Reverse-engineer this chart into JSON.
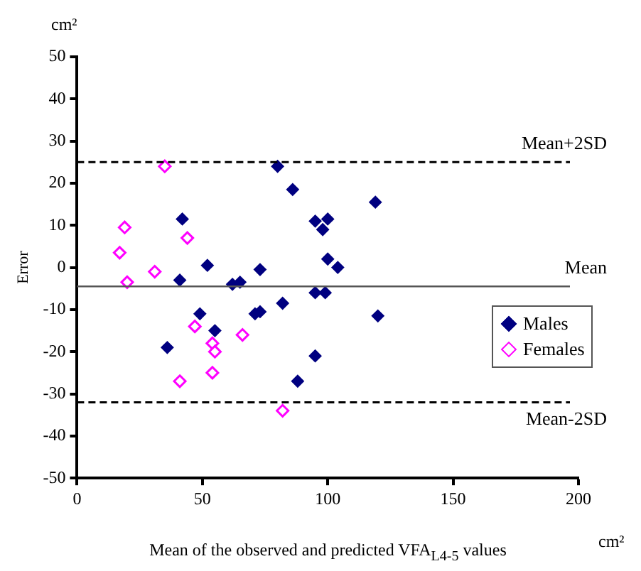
{
  "chart_data": {
    "type": "scatter",
    "xlabel": "Mean of the observed and predicted VFA$_{L4-5}$ values",
    "ylabel": "Error",
    "xlim": [
      0,
      200
    ],
    "xticks": [
      0,
      50,
      100,
      150,
      200
    ],
    "ylim": [
      -50,
      50
    ],
    "yticks": [
      -50,
      -40,
      -30,
      -20,
      -10,
      0,
      10,
      20,
      30,
      40,
      50
    ],
    "grid": false,
    "legend": "right",
    "marker": "diamond",
    "annotations": [
      "cm²",
      "cm²"
    ],
    "ref_lines": [
      {
        "axis": "y",
        "value": 25,
        "label": "Mean+2SD",
        "line_style": "dashed"
      },
      {
        "axis": "y",
        "value": -4.5,
        "label": "Mean",
        "line_style": "solid"
      },
      {
        "axis": "y",
        "value": -32,
        "label": "Mean-2SD",
        "line_style": "dashed"
      }
    ],
    "series": [
      {
        "name": "Males",
        "color": "#000080",
        "x": [
          36,
          42,
          41,
          49,
          52,
          55,
          62,
          65,
          71,
          73,
          73,
          82,
          80,
          86,
          88,
          95,
          98,
          100,
          100,
          104,
          95,
          99,
          95,
          119,
          120
        ],
        "values": [
          -19,
          11.5,
          -3,
          -11,
          0.5,
          -15,
          -4,
          -3.5,
          -11,
          -10.5,
          -0.5,
          -8.5,
          24,
          18.5,
          -27,
          11,
          9,
          11.5,
          2,
          0,
          -6,
          -6,
          -21,
          15.5,
          -11.5
        ]
      },
      {
        "name": "Females",
        "color": "#ff00ff",
        "x": [
          17,
          19,
          20,
          31,
          35,
          41,
          44,
          47,
          54,
          55,
          54,
          66,
          82
        ],
        "values": [
          3.5,
          9.5,
          -3.5,
          -1,
          24,
          -27,
          7,
          -14,
          -18,
          -20,
          -25,
          -16,
          -34
        ]
      }
    ]
  }
}
